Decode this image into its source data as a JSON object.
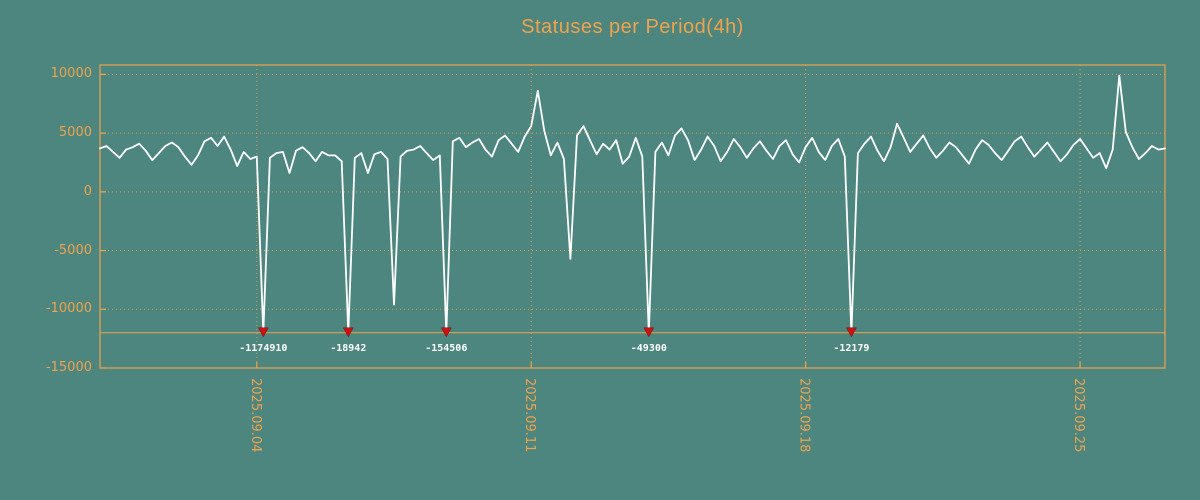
{
  "colors": {
    "background": "#4c867f",
    "accent_orange": "#f0a24c",
    "series_white": "#ffffff",
    "marker_red": "#cc1111",
    "annotation_text": "#ffffff"
  },
  "chart_data": {
    "type": "line",
    "title": "Statuses per Period(4h)",
    "period_hours": 4,
    "x_start": "2025.08.31 00:00",
    "grid": true,
    "legend": "none",
    "ylim": [
      -15000,
      10800
    ],
    "yticks": [
      10000,
      5000,
      0,
      -5000,
      -10000,
      -15000
    ],
    "xticks": [
      {
        "label": "2025.09.04",
        "index": 24
      },
      {
        "label": "2025.09.11",
        "index": 66
      },
      {
        "label": "2025.09.18",
        "index": 108
      },
      {
        "label": "2025.09.25",
        "index": 150
      }
    ],
    "clip_y": -12000,
    "values": [
      3700,
      3900,
      3400,
      2900,
      3600,
      3800,
      4100,
      3500,
      2700,
      3300,
      3900,
      4200,
      3800,
      3000,
      2300,
      3100,
      4300,
      4600,
      3900,
      4700,
      3600,
      2200,
      3400,
      2800,
      3000,
      -1174910,
      2900,
      3300,
      3400,
      1600,
      3500,
      3800,
      3300,
      2600,
      3400,
      3100,
      3100,
      2600,
      -18942,
      2900,
      3300,
      1600,
      3200,
      3400,
      2800,
      -9600,
      3000,
      3500,
      3600,
      3900,
      3300,
      2700,
      3100,
      -154506,
      4300,
      4600,
      3800,
      4200,
      4500,
      3600,
      3000,
      4400,
      4800,
      4100,
      3400,
      4700,
      5600,
      8600,
      5200,
      3100,
      4200,
      2800,
      -5700,
      4800,
      5600,
      4400,
      3200,
      4100,
      3600,
      4400,
      2400,
      3000,
      4600,
      3000,
      -49300,
      3400,
      4200,
      3100,
      4800,
      5400,
      4400,
      2700,
      3600,
      4700,
      3900,
      2600,
      3400,
      4500,
      3800,
      2900,
      3700,
      4300,
      3500,
      2800,
      3900,
      4400,
      3200,
      2500,
      3800,
      4600,
      3400,
      2700,
      3900,
      4500,
      3000,
      -12179,
      3300,
      4100,
      4700,
      3500,
      2600,
      3800,
      5800,
      4600,
      3400,
      4100,
      4800,
      3700,
      2900,
      3500,
      4200,
      3800,
      3100,
      2400,
      3600,
      4400,
      4000,
      3300,
      2700,
      3500,
      4300,
      4700,
      3800,
      3000,
      3600,
      4200,
      3400,
      2600,
      3200,
      4000,
      4500,
      3700,
      2900,
      3300,
      2000,
      3600,
      9900,
      5100,
      3800,
      2800,
      3300,
      3900,
      3600,
      3700
    ],
    "annotations": [
      {
        "index": 25,
        "label": "-1174910",
        "value": -1174910
      },
      {
        "index": 38,
        "label": "-18942",
        "value": -18942
      },
      {
        "index": 53,
        "label": "-154506",
        "value": -154506
      },
      {
        "index": 84,
        "label": "-49300",
        "value": -49300
      },
      {
        "index": 115,
        "label": "-12179",
        "value": -12179
      }
    ]
  }
}
